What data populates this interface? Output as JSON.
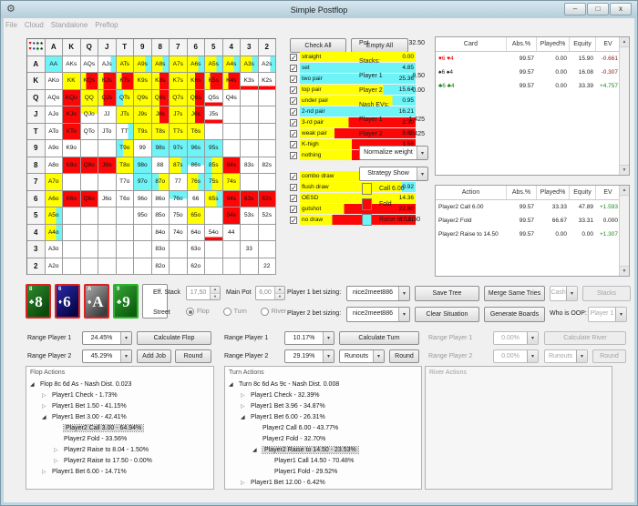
{
  "colors": {
    "y": "#ffff00",
    "c": "#6ef3f7",
    "r": "#fb0707",
    "pos": "#1c8a1c",
    "neg": "#8b2020",
    "heart": "#dd0000",
    "diamond": "#1b1bb8",
    "club": "#0c7a0c",
    "spade": "#1a1a1a"
  },
  "window": {
    "title": "Simple Postflop",
    "controls": {
      "minimize": "–",
      "maximize": "□",
      "close": "x"
    },
    "app_icon": "⚙"
  },
  "menu": {
    "items": [
      "File",
      "Cloud",
      "Standalone",
      "Preflop"
    ]
  },
  "hand_grid": {
    "corner_suits": [
      [
        "♥",
        "#dd0000"
      ],
      [
        "♦",
        "#1b1bb8"
      ],
      [
        "♣",
        "#0c7a0c"
      ],
      [
        "♠",
        "#1a1a1a"
      ]
    ],
    "columns": [
      "A",
      "K",
      "Q",
      "J",
      "T",
      "9",
      "8",
      "7",
      "6",
      "5",
      "4",
      "3",
      "2"
    ],
    "rows": [
      "A",
      "K",
      "Q",
      "J",
      "T",
      "9",
      "8",
      "7",
      "6",
      "5",
      "4",
      "3",
      "2"
    ],
    "cells": [
      [
        [
          "AA",
          "c"
        ],
        [
          "AKs",
          "w"
        ],
        [
          "AQs",
          "w"
        ],
        [
          "AJs",
          "wc"
        ],
        [
          "ATs",
          "y"
        ],
        [
          "A9s",
          "yc"
        ],
        [
          "A8s",
          "yc"
        ],
        [
          "A7s",
          "y"
        ],
        [
          "A6s",
          "yc"
        ],
        [
          "A5s",
          "yc"
        ],
        [
          "A4s",
          "yc"
        ],
        [
          "A3s",
          "yc"
        ],
        [
          "A2s",
          "wc"
        ]
      ],
      [
        [
          "AKo",
          "w"
        ],
        [
          "KK",
          "y"
        ],
        [
          "KQs",
          "ry"
        ],
        [
          "KJs",
          "ry"
        ],
        [
          "KTs",
          "ry"
        ],
        [
          "K9s",
          "y"
        ],
        [
          "K8s",
          "yr"
        ],
        [
          "K7s",
          "y"
        ],
        [
          "K6s",
          "yr"
        ],
        [
          "K5s",
          "ry"
        ],
        [
          "K4s",
          "ry"
        ],
        [
          "K3s",
          "wr"
        ],
        [
          "K2s",
          "wr"
        ]
      ],
      [
        [
          "AQo",
          "w"
        ],
        [
          "KQo",
          "r"
        ],
        [
          "QQ",
          "y"
        ],
        [
          "QJs",
          "ry"
        ],
        [
          "QTs",
          "cy"
        ],
        [
          "Q9s",
          "y"
        ],
        [
          "Q8s",
          "yr"
        ],
        [
          "Q7s",
          "y"
        ],
        [
          "Q6s",
          "yr"
        ],
        [
          "Q5s",
          "wr"
        ],
        [
          "Q4s",
          "w"
        ],
        [
          "",
          ""
        ],
        [
          "",
          ""
        ]
      ],
      [
        [
          "AJo",
          "w"
        ],
        [
          "KJo",
          "r"
        ],
        [
          "QJo",
          "yw"
        ],
        [
          "JJ",
          "w"
        ],
        [
          "JTs",
          "y"
        ],
        [
          "J9s",
          "y"
        ],
        [
          "J8s",
          "yr"
        ],
        [
          "J7s",
          "y"
        ],
        [
          "J6s",
          "yr"
        ],
        [
          "J5s",
          "wr"
        ],
        [
          "",
          ""
        ],
        [
          "",
          ""
        ],
        [
          "",
          ""
        ]
      ],
      [
        [
          "ATo",
          "w"
        ],
        [
          "KTo",
          "r"
        ],
        [
          "QTo",
          "w"
        ],
        [
          "JTo",
          "w"
        ],
        [
          "TT",
          "wc"
        ],
        [
          "T9s",
          "y"
        ],
        [
          "T8s",
          "y"
        ],
        [
          "T7s",
          "y"
        ],
        [
          "T6s",
          "y"
        ],
        [
          "",
          ""
        ],
        [
          "",
          ""
        ],
        [
          "",
          ""
        ],
        [
          "",
          ""
        ]
      ],
      [
        [
          "A9o",
          "w"
        ],
        [
          "K9o",
          "w"
        ],
        [
          "",
          ""
        ],
        [
          "",
          ""
        ],
        [
          "T9o",
          "cy"
        ],
        [
          "99",
          "w"
        ],
        [
          "98s",
          "c"
        ],
        [
          "97s",
          "c"
        ],
        [
          "96s",
          "c"
        ],
        [
          "95s",
          "c"
        ],
        [
          "",
          ""
        ],
        [
          "",
          ""
        ],
        [
          "",
          ""
        ]
      ],
      [
        [
          "A8o",
          "w"
        ],
        [
          "K8o",
          "r"
        ],
        [
          "Q8o",
          "r"
        ],
        [
          "J8o",
          "r"
        ],
        [
          "T8o",
          "y"
        ],
        [
          "98o",
          "c"
        ],
        [
          "88",
          "w"
        ],
        [
          "87s",
          "yc"
        ],
        [
          "86s",
          "cw"
        ],
        [
          "85s",
          "cy"
        ],
        [
          "84s",
          "r"
        ],
        [
          "83s",
          "w"
        ],
        [
          "82s",
          "w"
        ]
      ],
      [
        [
          "A7o",
          "y"
        ],
        [
          "",
          ""
        ],
        [
          "",
          ""
        ],
        [
          "",
          ""
        ],
        [
          "T7o",
          "w"
        ],
        [
          "97o",
          "c"
        ],
        [
          "87o",
          "cy"
        ],
        [
          "77",
          "w"
        ],
        [
          "76s",
          "yc"
        ],
        [
          "75s",
          "cy"
        ],
        [
          "74s",
          "y"
        ],
        [
          "",
          ""
        ],
        [
          "",
          ""
        ]
      ],
      [
        [
          "A6o",
          "y"
        ],
        [
          "K6o",
          "r"
        ],
        [
          "Q6o",
          "r"
        ],
        [
          "J6o",
          "w"
        ],
        [
          "T6o",
          "w"
        ],
        [
          "96o",
          "w"
        ],
        [
          "86o",
          "w"
        ],
        [
          "76o",
          "cw"
        ],
        [
          "66",
          "w"
        ],
        [
          "65s",
          "yc"
        ],
        [
          "64s",
          "r"
        ],
        [
          "63s",
          "r"
        ],
        [
          "62s",
          "r"
        ]
      ],
      [
        [
          "A5o",
          "yc"
        ],
        [
          "",
          ""
        ],
        [
          "",
          ""
        ],
        [
          "",
          ""
        ],
        [
          "",
          ""
        ],
        [
          "95o",
          "w"
        ],
        [
          "85o",
          "w"
        ],
        [
          "75o",
          "w"
        ],
        [
          "65o",
          "y"
        ],
        [
          "",
          ""
        ],
        [
          "54s",
          "r"
        ],
        [
          "53s",
          "w"
        ],
        [
          "52s",
          "w"
        ]
      ],
      [
        [
          "A4o",
          "yc"
        ],
        [
          "",
          ""
        ],
        [
          "",
          ""
        ],
        [
          "",
          ""
        ],
        [
          "",
          ""
        ],
        [
          "",
          ""
        ],
        [
          "84o",
          "w"
        ],
        [
          "74o",
          "w"
        ],
        [
          "64o",
          "w"
        ],
        [
          "54o",
          "wr"
        ],
        [
          "44",
          "w"
        ],
        [
          "",
          ""
        ],
        [
          "",
          ""
        ]
      ],
      [
        [
          "A3o",
          "w"
        ],
        [
          "",
          ""
        ],
        [
          "",
          ""
        ],
        [
          "",
          ""
        ],
        [
          "",
          ""
        ],
        [
          "",
          ""
        ],
        [
          "83o",
          "w"
        ],
        [
          "",
          ""
        ],
        [
          "63o",
          "w"
        ],
        [
          "",
          ""
        ],
        [
          "",
          ""
        ],
        [
          "33",
          "w"
        ],
        [
          "",
          ""
        ]
      ],
      [
        [
          "A2o",
          "w"
        ],
        [
          "",
          ""
        ],
        [
          "",
          ""
        ],
        [
          "",
          ""
        ],
        [
          "",
          ""
        ],
        [
          "",
          ""
        ],
        [
          "82o",
          "w"
        ],
        [
          "",
          ""
        ],
        [
          "62o",
          "w"
        ],
        [
          "",
          ""
        ],
        [
          "",
          ""
        ],
        [
          "",
          ""
        ],
        [
          "22",
          "w"
        ]
      ]
    ]
  },
  "actions_panel": {
    "check_all": "Check All",
    "empty_all": "Empty All"
  },
  "filters": {
    "made_hands": [
      {
        "label": "straight",
        "value": "0.00",
        "seg": [
          [
            "y",
            100
          ]
        ]
      },
      {
        "label": "set",
        "value": "4.85",
        "seg": [
          [
            "c",
            100
          ]
        ]
      },
      {
        "label": "two pair",
        "value": "25.36",
        "seg": [
          [
            "c",
            100
          ]
        ]
      },
      {
        "label": "top pair",
        "value": "15.64",
        "seg": [
          [
            "y",
            72
          ],
          [
            "c",
            28
          ]
        ]
      },
      {
        "label": "under pair",
        "value": "0.95",
        "seg": [
          [
            "y",
            80
          ],
          [
            "c",
            20
          ]
        ]
      },
      {
        "label": "2-nd pair",
        "value": "16.21",
        "seg": [
          [
            "c",
            100
          ]
        ]
      },
      {
        "label": "3-rd pair",
        "value": "2.30",
        "seg": [
          [
            "y",
            42
          ],
          [
            "r",
            58
          ]
        ]
      },
      {
        "label": "weak pair",
        "value": "8.69",
        "seg": [
          [
            "y",
            30
          ],
          [
            "r",
            70
          ]
        ]
      },
      {
        "label": "K-high",
        "value": "1.56",
        "seg": [
          [
            "y",
            45
          ],
          [
            "r",
            55
          ]
        ]
      },
      {
        "label": "nothing",
        "value": "1.28",
        "seg": [
          [
            "y",
            45
          ],
          [
            "r",
            55
          ]
        ]
      }
    ],
    "draws": [
      {
        "label": "combo draw",
        "value": "1.55",
        "seg": [
          [
            "y",
            85
          ],
          [
            "c",
            15
          ]
        ]
      },
      {
        "label": "flush draw",
        "value": "0.92",
        "seg": [
          [
            "y",
            88
          ],
          [
            "c",
            12
          ]
        ]
      },
      {
        "label": "OESD",
        "value": "14.36",
        "seg": [
          [
            "y",
            100
          ]
        ]
      },
      {
        "label": "gutshot",
        "value": "22.80",
        "seg": [
          [
            "y",
            38
          ],
          [
            "r",
            62
          ]
        ]
      },
      {
        "label": "no draw",
        "value": "37.21",
        "seg": [
          [
            "y",
            28
          ],
          [
            "r",
            72
          ]
        ]
      }
    ]
  },
  "stats": {
    "pot_label": "Pot",
    "pot_value": "32.50",
    "stacks_label": "Stacks:",
    "player1_label": "Player 1",
    "player1_stack": "8.50",
    "player2_label": "Player 2",
    "player2_stack": "0.00",
    "nash_label": "Nash EVs:",
    "nash_player1_label": "Player 1",
    "nash_player1": "-1.425",
    "nash_player2_label": "Player 2",
    "nash_player2": "7.425",
    "normalize_dropdown": "Normalize weight",
    "strategy_dropdown": "Strategy Show"
  },
  "legend": {
    "items": [
      {
        "color": "y",
        "label": "Call 6.00"
      },
      {
        "color": "r",
        "label": "Fold"
      },
      {
        "color": "c",
        "label": "Raise to 14.50"
      }
    ]
  },
  "card_table": {
    "headers": [
      "Card",
      "Abs.%",
      "Played%",
      "Equity",
      "EV"
    ],
    "rows": [
      {
        "name": "♥6 ♥4",
        "suit": "heart",
        "values": [
          "99.57",
          "0.00",
          "15.90"
        ],
        "ev": "-0.661",
        "ev_class": "neg"
      },
      {
        "name": "♠6 ♠4",
        "suit": "spade",
        "values": [
          "99.57",
          "0.00",
          "16.08"
        ],
        "ev": "-0.307",
        "ev_class": "neg"
      },
      {
        "name": "♣6 ♣4",
        "suit": "club",
        "values": [
          "99.57",
          "0.00",
          "33.39"
        ],
        "ev": "+4.757",
        "ev_class": "pos"
      }
    ]
  },
  "action_table": {
    "headers": [
      "Action",
      "Abs.%",
      "Played%",
      "Equity",
      "EV"
    ],
    "rows": [
      {
        "name": "Player2 Call 6.00",
        "values": [
          "99.57",
          "33.33",
          "47.89"
        ],
        "ev": "+1.593",
        "ev_class": "pos"
      },
      {
        "name": "Player2 Fold",
        "values": [
          "99.57",
          "66.67",
          "33.31"
        ],
        "ev": "0.000",
        "ev_class": "zero"
      },
      {
        "name": "Player2 Raise to 14.50",
        "values": [
          "99.57",
          "0.00",
          "0.00"
        ],
        "ev": "+1.307",
        "ev_class": "pos"
      }
    ]
  },
  "board": {
    "cards": [
      {
        "code": "8c",
        "rank": "8",
        "suit": "♣",
        "suit_name": "club",
        "bg": "green",
        "border": "red"
      },
      {
        "code": "6d",
        "rank": "6",
        "suit": "♦",
        "suit_name": "diamond",
        "bg": "blue",
        "border": "red"
      },
      {
        "code": "As",
        "rank": "A",
        "suit": "♠",
        "suit_name": "spade",
        "bg": "gray",
        "border": "red"
      },
      {
        "code": "9c",
        "rank": "9",
        "suit": "♣",
        "suit_name": "club",
        "bg": "green2",
        "border": "green"
      },
      {
        "empty": true
      }
    ]
  },
  "controls": {
    "eff_stack_label": "Eff. Stack",
    "eff_stack_value": "17,50",
    "main_pot_label": "Main Pot",
    "main_pot_value": "6,00",
    "street_label": "Street",
    "streets": [
      "Flop",
      "Turn",
      "River"
    ],
    "street_selected": "Flop"
  },
  "bet_sizing": {
    "player1_label": "Player 1 bet sizing:",
    "player1_value": "nice2meet886",
    "save_tree": "Save Tree",
    "merge_same_tries": "Merge Same Tries",
    "cash": "Cash",
    "stacks": "Stacks",
    "player2_label": "Player 2 bet sizing:",
    "player2_value": "nice2meet886",
    "clear_situation": "Clear Situation",
    "generate_boards": "Generate Boards",
    "oop_label": "Who is OOP:",
    "oop_value": "Player 1"
  },
  "ranges": {
    "flop": {
      "p1_label": "Range Player 1",
      "p1_value": "24.45%",
      "calc": "Calculate Flop",
      "p2_label": "Range Player 2",
      "p2_value": "45.29%",
      "add_job": "Add Job",
      "round": "Round"
    },
    "turn": {
      "p1_label": "Range Player 1",
      "p1_value": "10.17%",
      "calc": "Calculate Turn",
      "p2_label": "Range Player 2",
      "p2_value": "29.19%",
      "runouts": "Runouts",
      "round": "Round"
    },
    "river": {
      "p1_label": "Range Player 1",
      "p1_value": "0.00%",
      "calc": "Calculate River",
      "p2_label": "Range Player 2",
      "p2_value": "0.00%",
      "runouts": "Runouts",
      "round": "Round"
    }
  },
  "trees": {
    "flop": {
      "title": "Flop Actions",
      "items": [
        {
          "d": 0,
          "a": "exp",
          "t": "Flop 8c 6d As - Nash Dist. 0.023"
        },
        {
          "d": 1,
          "a": "col",
          "t": "Player1 Check - 1.73%"
        },
        {
          "d": 1,
          "a": "col",
          "t": "Player1 Bet 1.50 - 41.15%"
        },
        {
          "d": 1,
          "a": "exp",
          "t": "Player1 Bet 3.00 - 42.41%"
        },
        {
          "d": 2,
          "a": "none",
          "t": "Player2 Call 3.00 - 64.94%",
          "sel": true
        },
        {
          "d": 2,
          "a": "none",
          "t": "Player2 Fold - 33.56%"
        },
        {
          "d": 2,
          "a": "col",
          "t": "Player2 Raise to 8.04 - 1.50%"
        },
        {
          "d": 2,
          "a": "col",
          "t": "Player2 Raise to 17.50 - 0.00%"
        },
        {
          "d": 1,
          "a": "col",
          "t": "Player1 Bet 6.00 - 14.71%"
        }
      ]
    },
    "turn": {
      "title": "Turn Actions",
      "items": [
        {
          "d": 0,
          "a": "exp",
          "t": "Turn 8c 6d As 9c - Nash Dist. 0.008"
        },
        {
          "d": 1,
          "a": "col",
          "t": "Player1 Check - 32.39%"
        },
        {
          "d": 1,
          "a": "col",
          "t": "Player1 Bet 3.96 - 34.87%"
        },
        {
          "d": 1,
          "a": "exp",
          "t": "Player1 Bet 6.00 - 26.31%"
        },
        {
          "d": 2,
          "a": "none",
          "t": "Player2 Call 6.00 - 43.77%"
        },
        {
          "d": 2,
          "a": "none",
          "t": "Player2 Fold - 32.70%"
        },
        {
          "d": 2,
          "a": "exp",
          "t": "Player2 Raise to 14.50 - 23.53%",
          "sel": true
        },
        {
          "d": 3,
          "a": "none",
          "t": "Player1 Call 14.50 - 70.48%"
        },
        {
          "d": 3,
          "a": "none",
          "t": "Player1 Fold - 29.52%"
        },
        {
          "d": 1,
          "a": "col",
          "t": "Player1 Bet 12.00 - 6.42%"
        }
      ]
    },
    "river": {
      "title": "River Actions",
      "items": []
    }
  }
}
